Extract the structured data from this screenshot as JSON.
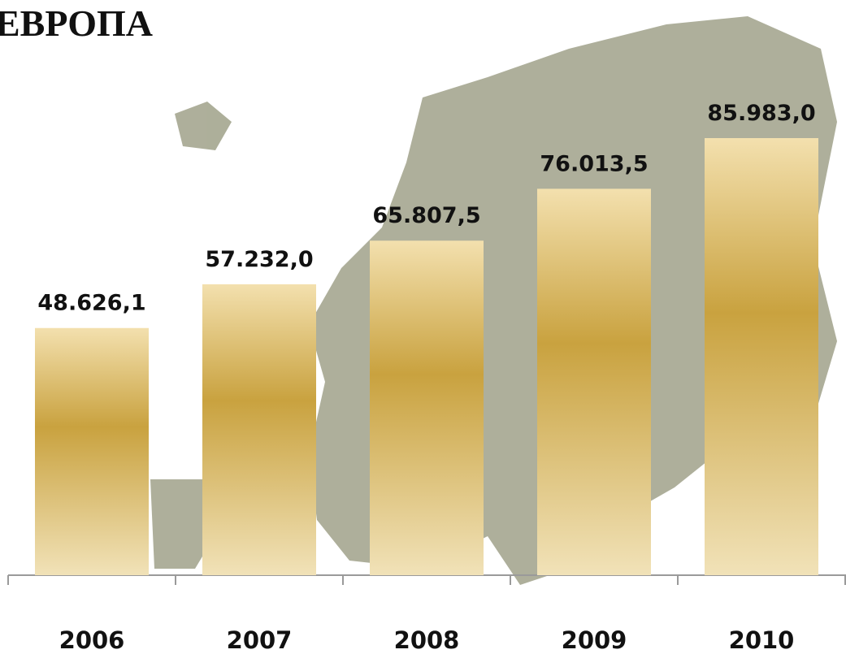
{
  "chart_data": {
    "type": "bar",
    "title": "ЕВРОПА",
    "categories": [
      "2006",
      "2007",
      "2008",
      "2009",
      "2010"
    ],
    "values": [
      48626.1,
      57232.0,
      65807.5,
      76013.5,
      85983.0
    ],
    "value_labels": [
      "48.626,1",
      "57.232,0",
      "65.807,5",
      "76.013,5",
      "85.983,0"
    ],
    "color": "#c9a23f"
  }
}
